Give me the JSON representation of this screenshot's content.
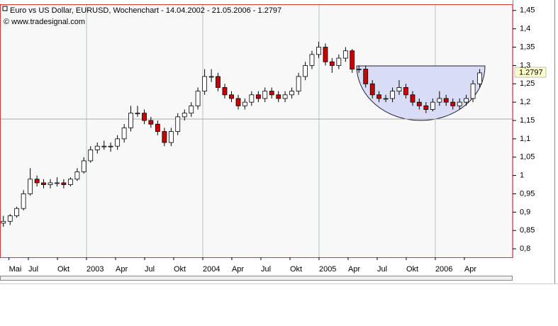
{
  "chart_data": {
    "type": "candlestick",
    "title": "Euro vs US Dollar, EURUSD, Wochenchart - 14.04.2002 - 21.05.2006 - 1.2797",
    "subtitle": "© www.tradesignal.com",
    "up_color": "#ffffff",
    "down_color": "#cc0000",
    "x": [
      2002.285,
      2002.343,
      2002.4,
      2002.458,
      2002.516,
      2002.574,
      2002.631,
      2002.689,
      2002.747,
      2002.804,
      2002.862,
      2002.92,
      2002.977,
      2003.035,
      2003.093,
      2003.151,
      2003.208,
      2003.266,
      2003.324,
      2003.381,
      2003.439,
      2003.497,
      2003.554,
      2003.612,
      2003.67,
      2003.728,
      2003.785,
      2003.843,
      2003.901,
      2003.958,
      2004.016,
      2004.074,
      2004.131,
      2004.189,
      2004.247,
      2004.305,
      2004.362,
      2004.42,
      2004.478,
      2004.535,
      2004.593,
      2004.651,
      2004.708,
      2004.766,
      2004.824,
      2004.882,
      2004.939,
      2004.997,
      2005.055,
      2005.112,
      2005.17,
      2005.228,
      2005.285,
      2005.343,
      2005.401,
      2005.459,
      2005.516,
      2005.574,
      2005.632,
      2005.689,
      2005.747,
      2005.805,
      2005.862,
      2005.92,
      2005.978,
      2006.036,
      2006.093,
      2006.151,
      2006.209,
      2006.266,
      2006.324,
      2006.382
    ],
    "open": [
      0.87,
      0.875,
      0.89,
      0.91,
      0.95,
      0.99,
      0.98,
      0.975,
      0.98,
      0.98,
      0.975,
      0.99,
      1.01,
      1.04,
      1.07,
      1.08,
      1.08,
      1.08,
      1.1,
      1.13,
      1.17,
      1.17,
      1.15,
      1.14,
      1.12,
      1.09,
      1.12,
      1.16,
      1.17,
      1.19,
      1.23,
      1.27,
      1.27,
      1.24,
      1.22,
      1.21,
      1.19,
      1.2,
      1.22,
      1.21,
      1.23,
      1.22,
      1.21,
      1.22,
      1.23,
      1.27,
      1.3,
      1.33,
      1.35,
      1.31,
      1.3,
      1.32,
      1.34,
      1.29,
      1.29,
      1.25,
      1.22,
      1.21,
      1.21,
      1.23,
      1.24,
      1.22,
      1.2,
      1.19,
      1.18,
      1.2,
      1.21,
      1.2,
      1.19,
      1.2,
      1.21,
      1.25
    ],
    "high": [
      0.89,
      0.895,
      0.915,
      0.96,
      1.02,
      1.0,
      0.99,
      0.99,
      0.995,
      0.99,
      0.995,
      1.02,
      1.05,
      1.08,
      1.09,
      1.095,
      1.09,
      1.11,
      1.14,
      1.19,
      1.19,
      1.18,
      1.16,
      1.15,
      1.13,
      1.13,
      1.17,
      1.18,
      1.2,
      1.24,
      1.29,
      1.29,
      1.28,
      1.25,
      1.23,
      1.22,
      1.21,
      1.23,
      1.23,
      1.24,
      1.24,
      1.23,
      1.23,
      1.24,
      1.28,
      1.31,
      1.34,
      1.365,
      1.36,
      1.32,
      1.33,
      1.35,
      1.345,
      1.3,
      1.3,
      1.26,
      1.23,
      1.22,
      1.24,
      1.26,
      1.25,
      1.23,
      1.21,
      1.2,
      1.21,
      1.23,
      1.22,
      1.21,
      1.21,
      1.22,
      1.26,
      1.29
    ],
    "low": [
      0.86,
      0.865,
      0.885,
      0.905,
      0.945,
      0.97,
      0.965,
      0.965,
      0.97,
      0.965,
      0.97,
      0.985,
      1.005,
      1.035,
      1.06,
      1.07,
      1.065,
      1.07,
      1.09,
      1.12,
      1.16,
      1.14,
      1.13,
      1.11,
      1.08,
      1.08,
      1.11,
      1.15,
      1.16,
      1.18,
      1.22,
      1.255,
      1.23,
      1.21,
      1.2,
      1.18,
      1.18,
      1.19,
      1.2,
      1.2,
      1.21,
      1.2,
      1.2,
      1.21,
      1.22,
      1.26,
      1.29,
      1.32,
      1.3,
      1.28,
      1.29,
      1.31,
      1.28,
      1.28,
      1.24,
      1.21,
      1.2,
      1.2,
      1.2,
      1.22,
      1.21,
      1.19,
      1.18,
      1.17,
      1.175,
      1.19,
      1.19,
      1.18,
      1.18,
      1.19,
      1.2,
      1.24
    ],
    "close": [
      0.875,
      0.89,
      0.91,
      0.95,
      0.99,
      0.98,
      0.975,
      0.98,
      0.98,
      0.975,
      0.99,
      1.01,
      1.04,
      1.07,
      1.08,
      1.08,
      1.08,
      1.1,
      1.13,
      1.17,
      1.17,
      1.15,
      1.14,
      1.12,
      1.09,
      1.12,
      1.16,
      1.17,
      1.19,
      1.23,
      1.27,
      1.27,
      1.24,
      1.22,
      1.21,
      1.19,
      1.2,
      1.22,
      1.21,
      1.23,
      1.22,
      1.21,
      1.22,
      1.23,
      1.27,
      1.3,
      1.33,
      1.35,
      1.31,
      1.3,
      1.32,
      1.34,
      1.29,
      1.29,
      1.25,
      1.22,
      1.21,
      1.21,
      1.23,
      1.24,
      1.22,
      1.2,
      1.19,
      1.18,
      1.2,
      1.21,
      1.2,
      1.19,
      1.2,
      1.21,
      1.25,
      1.2797
    ],
    "xlim": [
      2002.256,
      2006.665
    ],
    "xticks": [
      {
        "value": 2002.333,
        "label": "Mai"
      },
      {
        "value": 2002.5,
        "label": "Jul"
      },
      {
        "value": 2002.75,
        "label": "Okt"
      },
      2003,
      {
        "value": 2003.25,
        "label": "Apr"
      },
      {
        "value": 2003.5,
        "label": "Jul"
      },
      {
        "value": 2003.75,
        "label": "Okt"
      },
      2004,
      {
        "value": 2004.25,
        "label": "Apr"
      },
      {
        "value": 2004.5,
        "label": "Jul"
      },
      {
        "value": 2004.75,
        "label": "Okt"
      },
      2005,
      {
        "value": 2005.25,
        "label": "Apr"
      },
      {
        "value": 2005.5,
        "label": "Jul"
      },
      {
        "value": 2005.75,
        "label": "Okt"
      },
      2006,
      {
        "value": 2006.25,
        "label": "Apr"
      }
    ],
    "ylim": [
      0.777,
      1.467
    ],
    "yticks": [
      {
        "value": 0.8,
        "label": "0,8"
      },
      {
        "value": 0.85,
        "label": "0,85"
      },
      {
        "value": 0.9,
        "label": "0,9"
      },
      {
        "value": 0.95,
        "label": "0,95"
      },
      1,
      {
        "value": 1.05,
        "label": "1,05"
      },
      {
        "value": 1.1,
        "label": "1,1"
      },
      {
        "value": 1.15,
        "label": "1,15"
      },
      {
        "value": 1.2,
        "label": "1,2"
      },
      {
        "value": 1.25,
        "label": "1,25"
      },
      {
        "value": 1.3,
        "label": "1,3"
      },
      {
        "value": 1.35,
        "label": "1,35"
      },
      {
        "value": 1.4,
        "label": "1,4"
      },
      {
        "value": 1.45,
        "label": "1,45"
      }
    ]
  }
}
